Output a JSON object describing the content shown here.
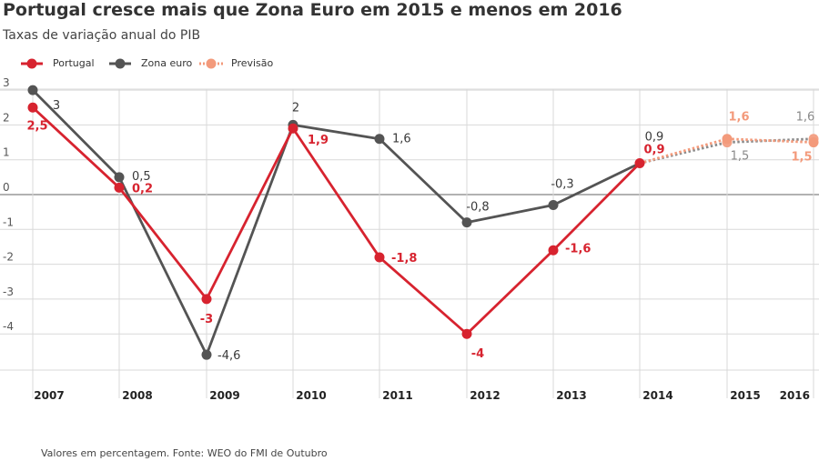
{
  "title": "Portugal cresce mais que Zona Euro em 2015 e menos em 2016",
  "subtitle": "Taxas de variação anual do PIB",
  "source": "Valores em percentagem. Fonte: WEO do FMI de Outubro",
  "legend": [
    {
      "label": "Portugal",
      "color": "#d7232f",
      "style": "solid"
    },
    {
      "label": "Zona euro",
      "color": "#545454",
      "style": "solid"
    },
    {
      "label": "Previsão",
      "color": "#f39a7b",
      "style": "dotted"
    }
  ],
  "colors": {
    "portugal": "#d7232f",
    "zona_euro": "#545454",
    "zona_euro_label": "#3a3a3a",
    "forecast": "#f39a7b",
    "forecast_grey": "#8a8a8a",
    "grid": "#d9d9d9",
    "zero": "#999999"
  },
  "chart_data": {
    "type": "line",
    "x": [
      "2007",
      "2008",
      "2009",
      "2010",
      "2011",
      "2012",
      "2013",
      "2014",
      "2015",
      "2016"
    ],
    "ylim": [
      -5,
      3.4
    ],
    "yticks": [
      3,
      2,
      1,
      0,
      -1,
      -2,
      -3,
      -4
    ],
    "ytick_labels": [
      "3",
      "2",
      "1",
      "0",
      "-1",
      "-2",
      "-3",
      "-4"
    ],
    "grid": true,
    "legend_position": "top-left",
    "forecast_from": "2014",
    "series": [
      {
        "name": "Portugal",
        "values": [
          2.5,
          0.2,
          -3,
          1.9,
          -1.8,
          -4,
          -1.6,
          0.9,
          1.6,
          1.5
        ],
        "labels": [
          "2,5",
          "0,2",
          "-3",
          "1,9",
          "-1,8",
          "-4",
          "-1,6",
          "0,9",
          "1,6",
          "1,5"
        ]
      },
      {
        "name": "Zona euro",
        "values": [
          3,
          0.5,
          -4.6,
          2,
          1.6,
          -0.8,
          -0.3,
          0.9,
          1.5,
          1.6
        ],
        "labels": [
          "3",
          "0,5",
          "-4,6",
          "2",
          "1,6",
          "-0,8",
          "-0,3",
          "0,9",
          "1,5",
          "1,6"
        ]
      }
    ]
  }
}
